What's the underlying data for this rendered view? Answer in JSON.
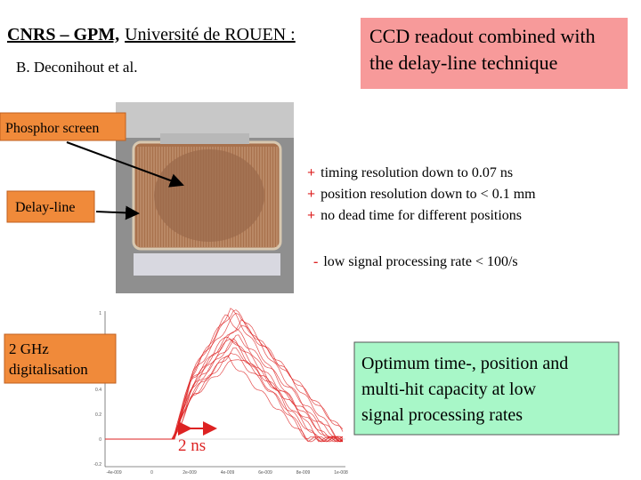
{
  "header": {
    "title_bold": "CNRS – GPM,",
    "title_rest": "Université de ROUEN :",
    "authors": "B. Deconihout et al."
  },
  "topic": {
    "lines": [
      "CCD readout combined with",
      "the delay-line technique"
    ]
  },
  "labels": {
    "phosphor": "Phosphor screen",
    "delay_line": "Delay-line",
    "digitalisation": [
      "2 GHz",
      "digitalisation"
    ]
  },
  "advantages": [
    {
      "sign": "+",
      "text": "timing resolution down to 0.07 ns"
    },
    {
      "sign": "+",
      "text": "position resolution down to < 0.1 mm"
    },
    {
      "sign": "+",
      "text": "no dead time for different positions"
    }
  ],
  "drawback": {
    "sign": "-",
    "text": "low signal processing rate < 100/s"
  },
  "scope": {
    "yticks": [
      "1",
      "0.4",
      "0.2",
      "0",
      "-0.2"
    ],
    "xticks": [
      "-4e-009",
      "0",
      "2e-009",
      "4e-009",
      "6e-009",
      "8e-009",
      "1e-008"
    ],
    "scale_label": "2 ns"
  },
  "conclusion": [
    "Optimum time-, position and",
    "multi-hit capacity at low",
    "signal processing rates"
  ]
}
